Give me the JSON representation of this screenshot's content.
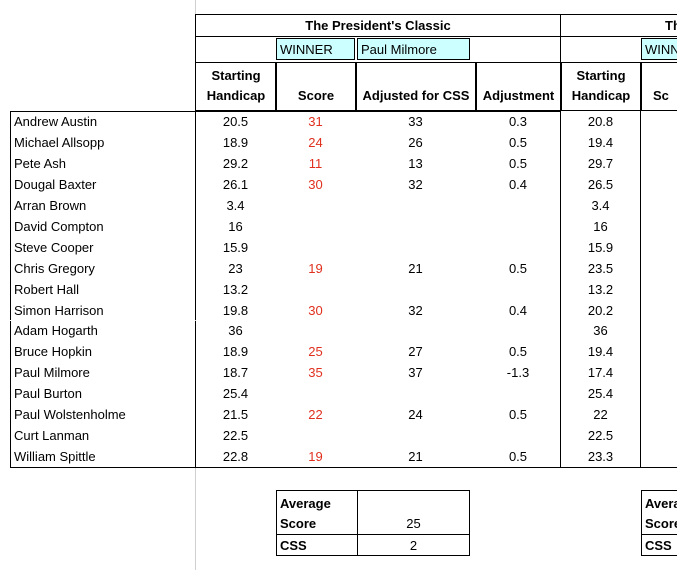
{
  "event": {
    "title": "The President's Classic",
    "winner_label": "WINNER",
    "winner": "Paul Milmore"
  },
  "columns": [
    "Starting Handicap",
    "Score",
    "Adjusted for CSS",
    "Adjustment",
    "Starting Handicap",
    "Sc"
  ],
  "rows": [
    [
      "Andrew Austin",
      20.5,
      31,
      33,
      0.3,
      20.8
    ],
    [
      "Michael Allsopp",
      18.9,
      24,
      26,
      0.5,
      19.4
    ],
    [
      "Pete Ash",
      29.2,
      11,
      13,
      0.5,
      29.7
    ],
    [
      "Dougal Baxter",
      26.1,
      30,
      32,
      0.4,
      26.5
    ],
    [
      "Arran Brown",
      3.4,
      null,
      null,
      null,
      3.4
    ],
    [
      "David Compton",
      16,
      null,
      null,
      null,
      16
    ],
    [
      "Steve Cooper",
      15.9,
      null,
      null,
      null,
      15.9
    ],
    [
      "Chris Gregory",
      23,
      19,
      21,
      0.5,
      23.5
    ],
    [
      "Robert Hall",
      13.2,
      null,
      null,
      null,
      13.2
    ],
    [
      "Simon Harrison",
      19.8,
      30,
      32,
      0.4,
      20.2
    ],
    [
      "Adam Hogarth",
      36,
      null,
      null,
      null,
      36
    ],
    [
      "Bruce Hopkin",
      18.9,
      25,
      27,
      0.5,
      19.4
    ],
    [
      "Paul Milmore",
      18.7,
      35,
      37,
      -1.3,
      17.4
    ],
    [
      "Paul Burton",
      25.4,
      null,
      null,
      null,
      25.4
    ],
    [
      "Paul Wolstenholme",
      21.5,
      22,
      24,
      0.5,
      22
    ],
    [
      "Curt Lanman",
      22.5,
      null,
      null,
      null,
      22.5
    ],
    [
      "William Spittle",
      22.8,
      19,
      21,
      0.5,
      23.3
    ]
  ],
  "summary": {
    "average_label": "Average Score",
    "average": 25,
    "css_label": "CSS",
    "css": 2
  },
  "next_event": {
    "title": "Th",
    "winner_label": "WINN",
    "average_label": [
      "Avera",
      "Score"
    ],
    "css_label": "CSS"
  }
}
